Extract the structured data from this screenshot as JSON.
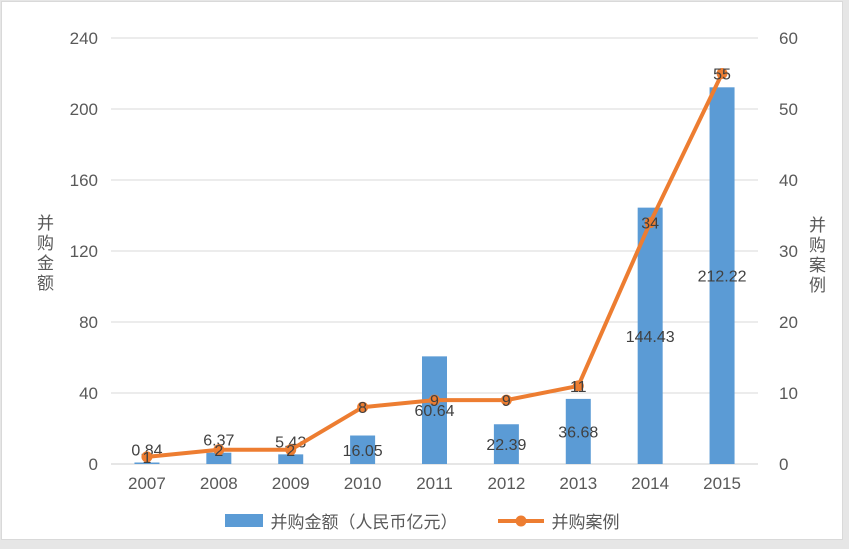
{
  "colors": {
    "bar": "#5B9BD5",
    "line": "#ED7D31",
    "grid": "#D9D9D9",
    "axis_line": "#CDCDCD",
    "axis_text": "#595959",
    "data_label": "#404040",
    "panel_background": "#FFFFFF",
    "page_background": "#E6E6E6",
    "panel_border": "#D9D9D9"
  },
  "axes": {
    "left_title": "并购金额",
    "right_title": "并购案例",
    "left_ticks": [
      0,
      40,
      80,
      120,
      160,
      200,
      240
    ],
    "right_ticks": [
      0,
      10,
      20,
      30,
      40,
      50,
      60
    ]
  },
  "chart_data": {
    "type": "combo",
    "categories": [
      "2007",
      "2008",
      "2009",
      "2010",
      "2011",
      "2012",
      "2013",
      "2014",
      "2015"
    ],
    "series": [
      {
        "name": "并购金额（人民币亿元）",
        "type": "bar",
        "axis": "left",
        "color": "#5B9BD5",
        "values": [
          0.84,
          6.37,
          5.43,
          16.05,
          60.64,
          22.39,
          36.68,
          144.43,
          212.22
        ]
      },
      {
        "name": "并购案例",
        "type": "line",
        "axis": "right",
        "color": "#ED7D31",
        "values": [
          1,
          2,
          2,
          8,
          9,
          9,
          11,
          34,
          55
        ]
      }
    ],
    "title": "",
    "xlabel": "",
    "left_ylabel": "并购金额",
    "right_ylabel": "并购案例",
    "left_ylim": [
      0,
      240
    ],
    "right_ylim": [
      0,
      60
    ],
    "grid": true,
    "data_labels": true,
    "legend_position": "bottom"
  }
}
